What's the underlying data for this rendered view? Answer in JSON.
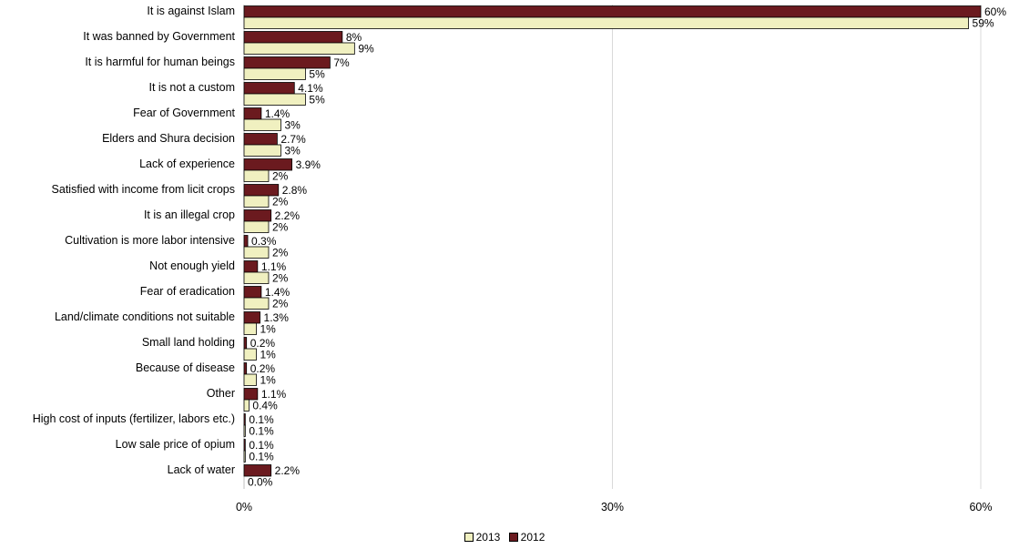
{
  "chart_data": {
    "type": "bar",
    "orientation": "horizontal",
    "categories": [
      "It is against Islam",
      "It was banned by Government",
      "It is harmful for human beings",
      "It is not a custom",
      "Fear of Government",
      "Elders and Shura decision",
      "Lack of experience",
      "Satisfied with income from licit crops",
      "It is an illegal crop",
      "Cultivation is more labor intensive",
      "Not enough yield",
      "Fear of eradication",
      "Land/climate conditions not suitable",
      "Small land holding",
      "Because of disease",
      "Other",
      "High cost of inputs (fertilizer, labors etc.)",
      "Low sale price of opium",
      "Lack of water"
    ],
    "series": [
      {
        "name": "2012",
        "color": "#6b1a1f",
        "values": [
          60,
          8,
          7,
          4.1,
          1.4,
          2.7,
          3.9,
          2.8,
          2.2,
          0.3,
          1.1,
          1.4,
          1.3,
          0.2,
          0.2,
          1.1,
          0.1,
          0.1,
          2.2
        ],
        "labels": [
          "60%",
          "8%",
          "7%",
          "4.1%",
          "1.4%",
          "2.7%",
          "3.9%",
          "2.8%",
          "2.2%",
          "0.3%",
          "1.1%",
          "1.4%",
          "1.3%",
          "0.2%",
          "0.2%",
          "1.1%",
          "0.1%",
          "0.1%",
          "2.2%"
        ]
      },
      {
        "name": "2013",
        "color": "#f0f0c0",
        "values": [
          59,
          9,
          5,
          5,
          3,
          3,
          2,
          2,
          2,
          2,
          2,
          2,
          1,
          1,
          1,
          0.4,
          0.1,
          0.1,
          0.0
        ],
        "labels": [
          "59%",
          "9%",
          "5%",
          "5%",
          "3%",
          "3%",
          "2%",
          "2%",
          "2%",
          "2%",
          "2%",
          "2%",
          "1%",
          "1%",
          "1%",
          "0.4%",
          "0.1%",
          "0.1%",
          "0.0%"
        ]
      }
    ],
    "xlim": [
      0,
      60
    ],
    "xticks": [
      0,
      30,
      60
    ],
    "xtick_labels": [
      "0%",
      "30%",
      "60%"
    ],
    "grid": true,
    "legend": {
      "position": "bottom-center",
      "entries": [
        "2013",
        "2012"
      ]
    }
  }
}
